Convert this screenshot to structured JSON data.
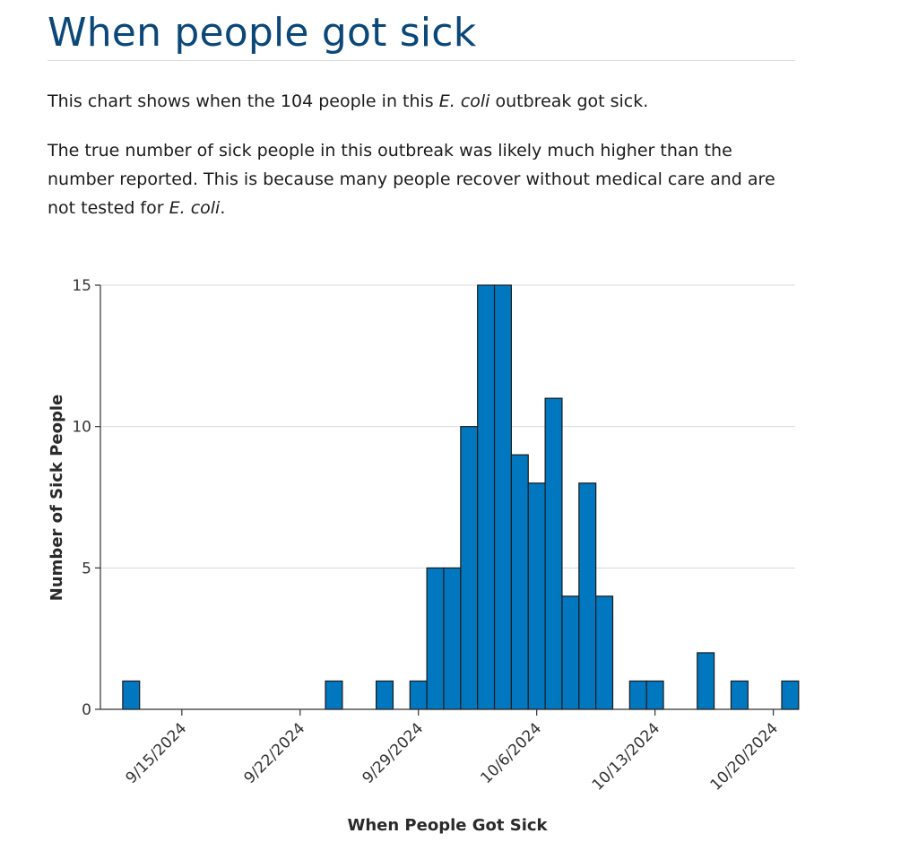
{
  "header": {
    "title": "When people got sick"
  },
  "intro": {
    "p1_before": "This chart shows when the 104 people in this ",
    "p1_italic": "E. coli",
    "p1_after": " outbreak got sick.",
    "p2_before": "The true number of sick people in this outbreak was likely much higher than the number reported. This is because many people recover without medical care and are not tested for ",
    "p2_italic": "E. coli",
    "p2_after": "."
  },
  "colors": {
    "bar_fill": "#0077bf",
    "bar_stroke": "#1a1a1a",
    "title": "#0b4778",
    "grid": "#d9d9d9"
  },
  "chart_data": {
    "type": "bar",
    "title": "",
    "xlabel": "When People Got Sick",
    "ylabel": "Number of Sick People",
    "ylim": [
      0,
      15
    ],
    "yticks": [
      0,
      5,
      10,
      15
    ],
    "xticks": [
      "9/15/2024",
      "9/22/2024",
      "9/29/2024",
      "10/6/2024",
      "10/13/2024",
      "10/20/2024"
    ],
    "x_range": [
      "2024-09-11",
      "2024-10-23"
    ],
    "grid": "horizontal",
    "bars": [
      {
        "date": "2024-09-12",
        "value": 1
      },
      {
        "date": "2024-09-24",
        "value": 1
      },
      {
        "date": "2024-09-27",
        "value": 1
      },
      {
        "date": "2024-09-29",
        "value": 1
      },
      {
        "date": "2024-09-30",
        "value": 5
      },
      {
        "date": "2024-10-01",
        "value": 5
      },
      {
        "date": "2024-10-02",
        "value": 10
      },
      {
        "date": "2024-10-03",
        "value": 15
      },
      {
        "date": "2024-10-04",
        "value": 15
      },
      {
        "date": "2024-10-05",
        "value": 9
      },
      {
        "date": "2024-10-06",
        "value": 8
      },
      {
        "date": "2024-10-07",
        "value": 11
      },
      {
        "date": "2024-10-08",
        "value": 4
      },
      {
        "date": "2024-10-09",
        "value": 8
      },
      {
        "date": "2024-10-10",
        "value": 4
      },
      {
        "date": "2024-10-12",
        "value": 1
      },
      {
        "date": "2024-10-13",
        "value": 1
      },
      {
        "date": "2024-10-16",
        "value": 2
      },
      {
        "date": "2024-10-18",
        "value": 1
      },
      {
        "date": "2024-10-21",
        "value": 1
      }
    ]
  }
}
